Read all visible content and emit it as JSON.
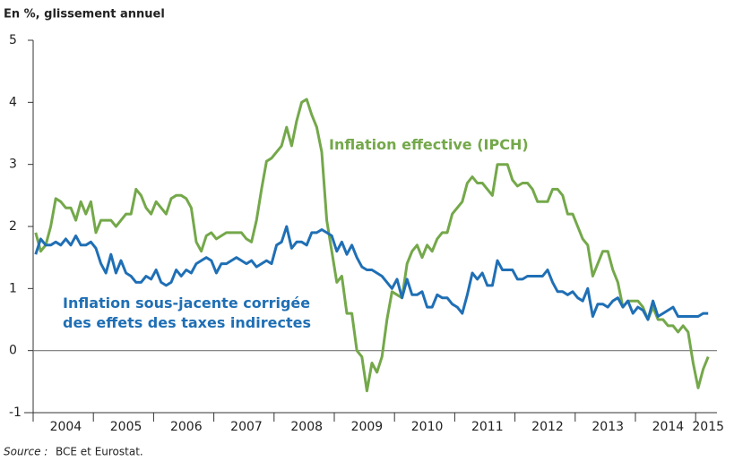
{
  "chart_data": {
    "type": "line",
    "title": "En %, glissement annuel",
    "source_label": "Source :",
    "source_text": "BCE et Eurostat.",
    "categories": [
      null,
      null,
      null,
      null,
      null,
      null,
      "2004",
      null,
      null,
      null,
      null,
      null,
      null,
      null,
      null,
      null,
      null,
      null,
      "2005",
      null,
      null,
      null,
      null,
      null,
      null,
      null,
      null,
      null,
      null,
      null,
      "2006",
      null,
      null,
      null,
      null,
      null,
      null,
      null,
      null,
      null,
      null,
      null,
      "2007",
      null,
      null,
      null,
      null,
      null,
      null,
      null,
      null,
      null,
      null,
      null,
      "2008",
      null,
      null,
      null,
      null,
      null,
      null,
      null,
      null,
      null,
      null,
      null,
      "2009",
      null,
      null,
      null,
      null,
      null,
      null,
      null,
      null,
      null,
      null,
      null,
      "2010",
      null,
      null,
      null,
      null,
      null,
      null,
      null,
      null,
      null,
      null,
      null,
      "2011",
      null,
      null,
      null,
      null,
      null,
      null,
      null,
      null,
      null,
      null,
      null,
      "2012",
      null,
      null,
      null,
      null,
      null,
      null,
      null,
      null,
      null,
      null,
      null,
      "2013",
      null,
      null,
      null,
      null,
      null,
      null,
      null,
      null,
      null,
      null,
      null,
      "2014",
      null,
      null,
      null,
      null,
      null,
      null,
      null,
      "2015"
    ],
    "series": [
      {
        "name": "Inflation effective (IPCH)",
        "color": "#74a84a",
        "values": [
          1.9,
          1.6,
          1.7,
          2.0,
          2.45,
          2.4,
          2.3,
          2.3,
          2.1,
          2.4,
          2.2,
          2.4,
          1.9,
          2.1,
          2.1,
          2.1,
          2.0,
          2.1,
          2.2,
          2.2,
          2.6,
          2.5,
          2.3,
          2.2,
          2.4,
          2.3,
          2.2,
          2.45,
          2.5,
          2.5,
          2.45,
          2.3,
          1.75,
          1.6,
          1.85,
          1.9,
          1.8,
          1.85,
          1.9,
          1.9,
          1.9,
          1.9,
          1.8,
          1.75,
          2.1,
          2.6,
          3.05,
          3.1,
          3.2,
          3.3,
          3.6,
          3.3,
          3.7,
          4.0,
          4.05,
          3.8,
          3.6,
          3.2,
          2.1,
          1.6,
          1.1,
          1.2,
          0.6,
          0.6,
          0.0,
          -0.1,
          -0.65,
          -0.2,
          -0.35,
          -0.1,
          0.5,
          0.95,
          0.9,
          0.85,
          1.4,
          1.6,
          1.7,
          1.5,
          1.7,
          1.6,
          1.8,
          1.9,
          1.9,
          2.2,
          2.3,
          2.4,
          2.7,
          2.8,
          2.7,
          2.7,
          2.6,
          2.5,
          3.0,
          3.0,
          3.0,
          2.75,
          2.65,
          2.7,
          2.7,
          2.6,
          2.4,
          2.4,
          2.4,
          2.6,
          2.6,
          2.5,
          2.2,
          2.2,
          2.0,
          1.8,
          1.7,
          1.2,
          1.4,
          1.6,
          1.6,
          1.3,
          1.1,
          0.7,
          0.8,
          0.8,
          0.8,
          0.7,
          0.5,
          0.7,
          0.5,
          0.5,
          0.4,
          0.4,
          0.3,
          0.4,
          0.3,
          -0.2,
          -0.6,
          -0.3,
          -0.1
        ]
      },
      {
        "name": "Inflation sous-jacente corrigée des effets des taxes indirectes",
        "color": "#1f6fb5",
        "values": [
          1.55,
          1.8,
          1.7,
          1.7,
          1.75,
          1.7,
          1.8,
          1.7,
          1.85,
          1.7,
          1.7,
          1.75,
          1.65,
          1.4,
          1.25,
          1.55,
          1.25,
          1.45,
          1.25,
          1.2,
          1.1,
          1.1,
          1.2,
          1.15,
          1.3,
          1.1,
          1.05,
          1.1,
          1.3,
          1.2,
          1.3,
          1.25,
          1.4,
          1.45,
          1.5,
          1.45,
          1.25,
          1.4,
          1.4,
          1.45,
          1.5,
          1.45,
          1.4,
          1.45,
          1.35,
          1.4,
          1.45,
          1.4,
          1.7,
          1.75,
          2.0,
          1.65,
          1.75,
          1.75,
          1.7,
          1.9,
          1.9,
          1.95,
          1.9,
          1.85,
          1.6,
          1.75,
          1.55,
          1.7,
          1.5,
          1.35,
          1.3,
          1.3,
          1.25,
          1.2,
          1.1,
          1.0,
          1.15,
          0.85,
          1.15,
          0.9,
          0.9,
          0.95,
          0.7,
          0.7,
          0.9,
          0.85,
          0.85,
          0.75,
          0.7,
          0.6,
          0.9,
          1.25,
          1.15,
          1.25,
          1.05,
          1.05,
          1.45,
          1.3,
          1.3,
          1.3,
          1.15,
          1.15,
          1.2,
          1.2,
          1.2,
          1.2,
          1.3,
          1.1,
          0.95,
          0.95,
          0.9,
          0.95,
          0.85,
          0.8,
          1.0,
          0.55,
          0.75,
          0.75,
          0.7,
          0.8,
          0.85,
          0.7,
          0.8,
          0.6,
          0.7,
          0.65,
          0.5,
          0.8,
          0.55,
          0.6,
          0.65,
          0.7,
          0.55,
          0.55,
          0.55,
          0.55,
          0.55,
          0.6,
          0.6
        ]
      }
    ],
    "ylim": [
      -1,
      5
    ],
    "yticks": [
      -1,
      0,
      1,
      2,
      3,
      4,
      5
    ]
  }
}
